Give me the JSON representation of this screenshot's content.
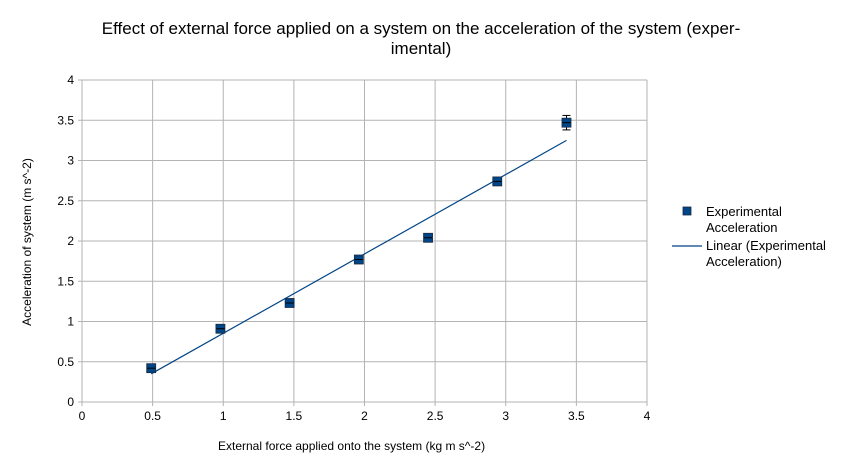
{
  "chart_data": {
    "type": "scatter",
    "title_line1": "Effect of external force applied on a system on the acceleration of the system (exper-",
    "title_line2": "imental)",
    "xlabel": "External force applied onto the system (kg m s^-2)",
    "ylabel": "Acceleration of system (m s^-2)",
    "xlim": [
      0,
      4
    ],
    "ylim": [
      0,
      4
    ],
    "x_ticks": [
      "0",
      "0.5",
      "1",
      "1.5",
      "2",
      "2.5",
      "3",
      "3.5",
      "4"
    ],
    "y_ticks": [
      "0",
      "0.5",
      "1",
      "1.5",
      "2",
      "2.5",
      "3",
      "3.5",
      "4"
    ],
    "grid": true,
    "legend_position": "right",
    "series": [
      {
        "name": "Experimental Acceleration",
        "name_line1": "Experimental",
        "name_line2": "Acceleration",
        "color": "#004586",
        "points": [
          {
            "x": 0.49,
            "y": 0.42,
            "err": 0.04
          },
          {
            "x": 0.98,
            "y": 0.91,
            "err": 0.04
          },
          {
            "x": 1.47,
            "y": 1.23,
            "err": 0.05
          },
          {
            "x": 1.96,
            "y": 1.77,
            "err": 0.04
          },
          {
            "x": 2.45,
            "y": 2.04,
            "err": 0.04
          },
          {
            "x": 2.94,
            "y": 2.74,
            "err": 0.05
          },
          {
            "x": 3.43,
            "y": 3.47,
            "err": 0.09
          }
        ]
      }
    ],
    "trendline": {
      "name": "Linear (Experimental Acceleration)",
      "name_line1": "Linear (Experimental",
      "name_line2": "Acceleration)",
      "type": "linear",
      "color": "#004586",
      "x_start": 0.49,
      "x_end": 3.43,
      "y_start": 0.35,
      "y_end": 3.25
    }
  }
}
